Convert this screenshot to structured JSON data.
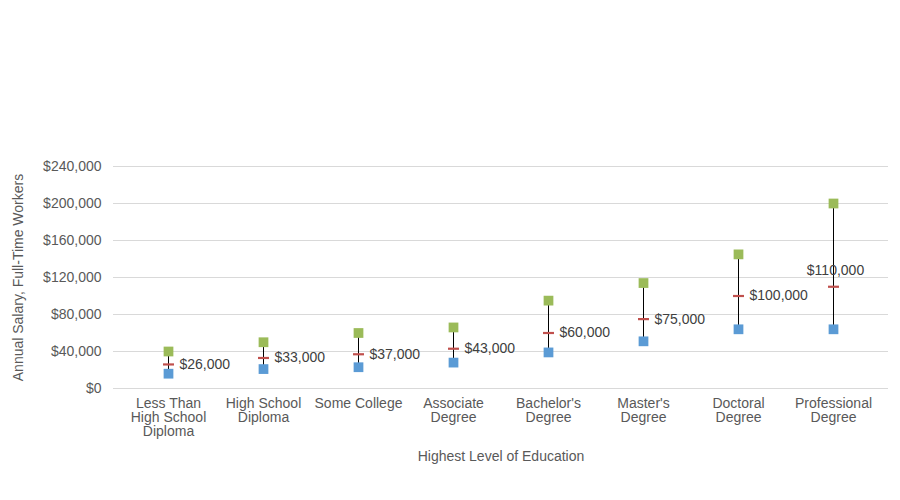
{
  "chart_data": {
    "type": "range",
    "x_label": "Highest Level of Education",
    "y_label": "Annual Salary, Full-Time Workers",
    "categories": [
      "Less Than\nHigh School\nDiploma",
      "High School\nDiploma",
      "Some College",
      "Associate\nDegree",
      "Bachelor's\nDegree",
      "Master's\nDegree",
      "Doctoral\nDegree",
      "Professional\nDegree"
    ],
    "series": [
      {
        "color": "#5b9bd5",
        "marker": "square",
        "values": [
          16000,
          21000,
          23000,
          28000,
          39000,
          51000,
          64000,
          64000
        ]
      },
      {
        "color": "#9bbb59",
        "marker": "square",
        "values": [
          40000,
          50000,
          60000,
          66000,
          95000,
          114000,
          145000,
          200000
        ]
      },
      {
        "color": "#c0504d",
        "marker": "dash",
        "data_labels": true,
        "values": [
          26000,
          33000,
          37000,
          43000,
          60000,
          75000,
          100000,
          110000
        ],
        "value_labels": [
          "$26,000",
          "$33,000",
          "$37,000",
          "$43,000",
          "$60,000",
          "$75,000",
          "$100,000",
          "$110,000"
        ]
      }
    ],
    "ylim": [
      0,
      240000
    ],
    "yticks": [
      {
        "value": 0,
        "label": "$0"
      },
      {
        "value": 40000,
        "label": "$40,000"
      },
      {
        "value": 80000,
        "label": "$80,000"
      },
      {
        "value": 120000,
        "label": "$120,000"
      },
      {
        "value": 160000,
        "label": "$160,000"
      },
      {
        "value": 200000,
        "label": "$200,000"
      },
      {
        "value": 240000,
        "label": "$240,000"
      }
    ],
    "grid": true
  }
}
